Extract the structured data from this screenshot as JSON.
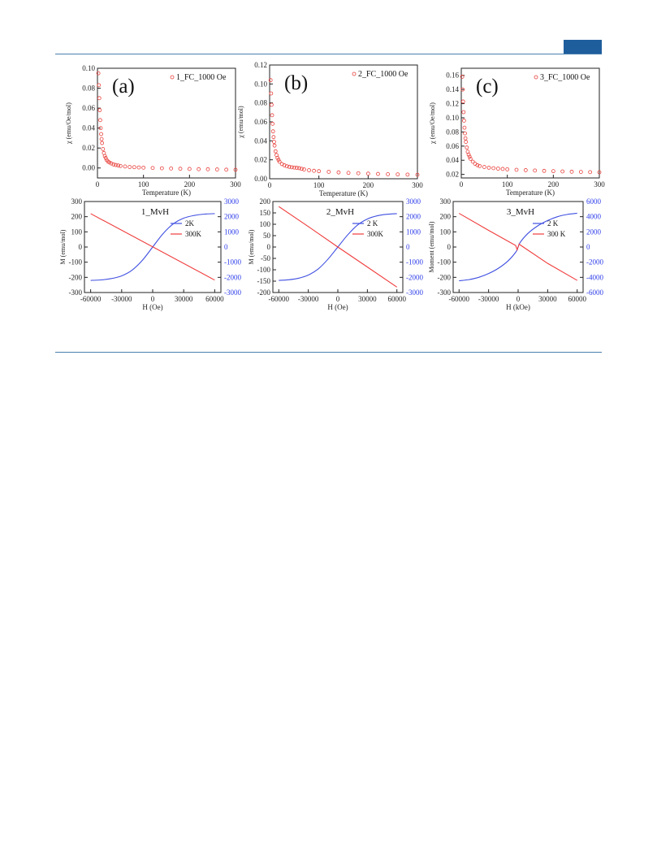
{
  "chart_data": [
    {
      "type": "scatter",
      "panel_label": "(a)",
      "xlabel": "Temperature (K)",
      "ylabel": "χ (emu/Oe/mol)",
      "xlim": [
        0,
        300
      ],
      "ylim": [
        -0.01,
        0.1
      ],
      "xticks": [
        "0",
        "100",
        "200",
        "300"
      ],
      "yticks": [
        "0.00",
        "0.02",
        "0.04",
        "0.06",
        "0.08",
        "0.10"
      ],
      "legend": "top-right",
      "series": [
        {
          "name": "1_FC_1000 Oe",
          "color": "#e8413c",
          "x": [
            2,
            3,
            4,
            5,
            6,
            7,
            8,
            9,
            10,
            12,
            14,
            16,
            18,
            20,
            23,
            26,
            30,
            35,
            40,
            45,
            50,
            60,
            70,
            80,
            90,
            100,
            120,
            140,
            160,
            180,
            200,
            220,
            240,
            260,
            280,
            300
          ],
          "y": [
            0.095,
            0.083,
            0.07,
            0.058,
            0.048,
            0.04,
            0.034,
            0.029,
            0.025,
            0.019,
            0.015,
            0.012,
            0.01,
            0.008,
            0.0065,
            0.0055,
            0.0045,
            0.0035,
            0.003,
            0.0025,
            0.002,
            0.0015,
            0.001,
            0.0008,
            0.0005,
            0.0003,
            0.0,
            -0.0003,
            -0.0005,
            -0.0008,
            -0.001,
            -0.0012,
            -0.0013,
            -0.0015,
            -0.0017,
            -0.0018
          ]
        }
      ]
    },
    {
      "type": "scatter",
      "panel_label": "(b)",
      "xlabel": "Temperature (K)",
      "ylabel": "χ (emu/mol)",
      "xlim": [
        0,
        300
      ],
      "ylim": [
        0,
        0.12
      ],
      "xticks": [
        "0",
        "100",
        "200",
        "300"
      ],
      "yticks": [
        "0.00",
        "0.02",
        "0.04",
        "0.06",
        "0.08",
        "0.10",
        "0.12"
      ],
      "legend": "top-right",
      "series": [
        {
          "name": "2_FC_1000 Oe",
          "color": "#e8413c",
          "x": [
            2,
            3,
            4,
            5,
            6,
            7,
            8,
            9,
            10,
            12,
            14,
            16,
            18,
            20,
            25,
            30,
            35,
            40,
            45,
            50,
            55,
            60,
            65,
            70,
            80,
            90,
            100,
            120,
            140,
            160,
            180,
            200,
            220,
            240,
            260,
            280,
            300
          ],
          "y": [
            0.104,
            0.09,
            0.078,
            0.067,
            0.058,
            0.05,
            0.044,
            0.039,
            0.035,
            0.029,
            0.025,
            0.022,
            0.02,
            0.018,
            0.0155,
            0.0142,
            0.0132,
            0.0126,
            0.0121,
            0.0118,
            0.0115,
            0.0112,
            0.0105,
            0.0098,
            0.009,
            0.0084,
            0.008,
            0.0073,
            0.0067,
            0.0062,
            0.0058,
            0.0054,
            0.0051,
            0.0048,
            0.0046,
            0.0044,
            0.0042
          ]
        }
      ]
    },
    {
      "type": "scatter",
      "panel_label": "(c)",
      "xlabel": "Temperature (K)",
      "ylabel": "χ (emu/Oe/mol)",
      "xlim": [
        0,
        300
      ],
      "ylim": [
        0.015,
        0.17
      ],
      "xticks": [
        "0",
        "100",
        "200",
        "300"
      ],
      "yticks": [
        "0.02",
        "0.04",
        "0.06",
        "0.08",
        "0.10",
        "0.12",
        "0.14",
        "0.16"
      ],
      "legend": "top-right",
      "series": [
        {
          "name": "3_FC_1000 Oe",
          "color": "#e8413c",
          "x": [
            2,
            3,
            4,
            5,
            6,
            7,
            8,
            9,
            10,
            12,
            14,
            16,
            18,
            20,
            25,
            30,
            35,
            40,
            50,
            60,
            70,
            80,
            90,
            100,
            120,
            140,
            160,
            180,
            200,
            220,
            240,
            260,
            280,
            300
          ],
          "y": [
            0.158,
            0.14,
            0.123,
            0.108,
            0.096,
            0.086,
            0.078,
            0.071,
            0.066,
            0.058,
            0.052,
            0.048,
            0.045,
            0.042,
            0.038,
            0.035,
            0.033,
            0.0318,
            0.0305,
            0.0295,
            0.0288,
            0.0282,
            0.0277,
            0.0272,
            0.0265,
            0.026,
            0.0255,
            0.025,
            0.0246,
            0.0242,
            0.0238,
            0.0235,
            0.0232,
            0.023
          ]
        }
      ]
    },
    {
      "type": "line",
      "title": "1_MvH",
      "xlabel": "H (Oe)",
      "ylabel": "M (emu/mol)",
      "ylabel_right": "",
      "xlim": [
        -66000,
        66000
      ],
      "ylim": [
        -300,
        300
      ],
      "ylim_right": [
        -3000,
        3000
      ],
      "xticks": [
        "-60000",
        "-30000",
        "0",
        "30000",
        "60000"
      ],
      "yticks": [
        "-300",
        "-200",
        "-100",
        "0",
        "100",
        "200",
        "300"
      ],
      "yticks_right": [
        "-3000",
        "-2000",
        "-1000",
        "0",
        "1000",
        "2000",
        "3000"
      ],
      "legend": "top-right",
      "series": [
        {
          "name": "2K",
          "color": "#3f4fe0",
          "axis": "right",
          "x": [
            -60000,
            -50000,
            -40000,
            -30000,
            -20000,
            -10000,
            0,
            10000,
            20000,
            30000,
            40000,
            50000,
            60000
          ],
          "y": [
            -2200,
            -2170,
            -2080,
            -1900,
            -1530,
            -880,
            0,
            880,
            1530,
            1900,
            2080,
            2170,
            2200
          ]
        },
        {
          "name": "300K",
          "color": "#f03c3c",
          "axis": "left",
          "x": [
            -60000,
            60000
          ],
          "y": [
            220,
            -218
          ]
        }
      ]
    },
    {
      "type": "line",
      "title": "2_MvH",
      "xlabel": "H (Oe)",
      "ylabel": "M (emu/mol)",
      "ylabel_right": "",
      "xlim": [
        -66000,
        66000
      ],
      "ylim": [
        -200,
        200
      ],
      "ylim_right": [
        -3000,
        3000
      ],
      "xticks": [
        "-60000",
        "-30000",
        "0",
        "30000",
        "60000"
      ],
      "yticks": [
        "-200",
        "-150",
        "-100",
        "-50",
        "0",
        "50",
        "100",
        "150",
        "200"
      ],
      "yticks_right": [
        "-3000",
        "-2000",
        "-1000",
        "0",
        "1000",
        "2000",
        "3000"
      ],
      "legend": "top-right",
      "series": [
        {
          "name": "2 K",
          "color": "#3f4fe0",
          "axis": "right",
          "x": [
            -60000,
            -50000,
            -40000,
            -30000,
            -20000,
            -10000,
            0,
            10000,
            20000,
            30000,
            40000,
            50000,
            60000
          ],
          "y": [
            -2200,
            -2160,
            -2060,
            -1850,
            -1450,
            -800,
            0,
            800,
            1450,
            1850,
            2060,
            2160,
            2200
          ]
        },
        {
          "name": "300K",
          "color": "#f03c3c",
          "axis": "left",
          "x": [
            -60000,
            -30000,
            0,
            30000,
            60000
          ],
          "y": [
            178,
            90,
            0,
            -88,
            -176
          ]
        }
      ]
    },
    {
      "type": "line",
      "title": "3_MvH",
      "xlabel": "H (kOe)",
      "ylabel": "Moment (emu/mol)",
      "ylabel_right": "",
      "xlim": [
        -66000,
        66000
      ],
      "ylim": [
        -300,
        300
      ],
      "ylim_right": [
        -6000,
        6000
      ],
      "xticks": [
        "-60000",
        "-30000",
        "0",
        "30000",
        "60000"
      ],
      "yticks": [
        "-300",
        "-200",
        "-100",
        "0",
        "100",
        "200",
        "300"
      ],
      "yticks_right": [
        "-6000",
        "-4000",
        "-2000",
        "0",
        "2000",
        "4000",
        "6000"
      ],
      "legend": "top-right",
      "series": [
        {
          "name": "2 K",
          "color": "#3f4fe0",
          "axis": "right",
          "x": [
            -60000,
            -50000,
            -40000,
            -30000,
            -20000,
            -10000,
            -2000,
            0,
            2000,
            10000,
            20000,
            30000,
            40000,
            50000,
            60000
          ],
          "y": [
            -4450,
            -4300,
            -4000,
            -3500,
            -2800,
            -1800,
            -600,
            0,
            600,
            1800,
            2800,
            3500,
            4000,
            4300,
            4450
          ]
        },
        {
          "name": "300 K",
          "color": "#f03c3c",
          "axis": "left",
          "x": [
            -60000,
            -30000,
            -2500,
            -1000,
            0,
            1000,
            2500,
            30000,
            60000
          ],
          "y": [
            222,
            110,
            10,
            -18,
            0,
            20,
            12,
            -108,
            -220
          ]
        }
      ]
    }
  ]
}
